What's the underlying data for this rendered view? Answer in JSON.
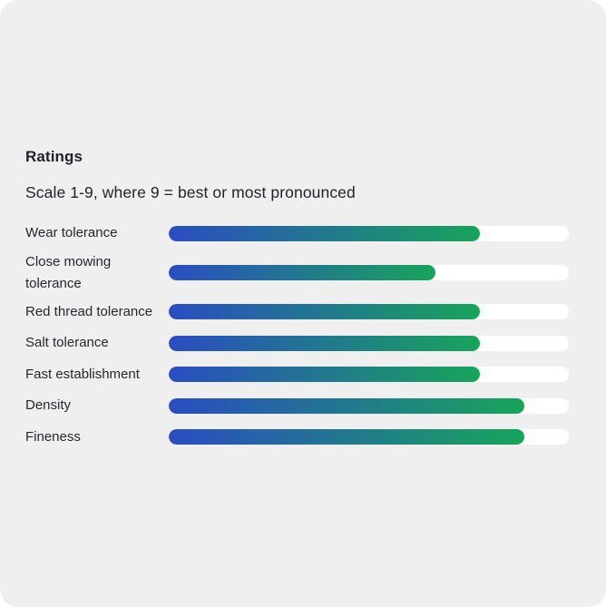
{
  "page": {
    "background": "#ffffff",
    "card_background": "#efefef",
    "text_color": "#1e222a"
  },
  "header": {
    "title": "Ratings",
    "subtitle": "Scale 1-9, where 9 = best or most pronounced"
  },
  "chart_data": {
    "type": "bar",
    "orientation": "horizontal",
    "title": "Ratings",
    "subtitle": "Scale 1-9, where 9 = best or most pronounced",
    "scale_min": 1,
    "scale_max": 9,
    "categories": [
      "Wear tolerance",
      "Close mowing tolerance",
      "Red thread tolerance",
      "Salt tolerance",
      "Fast establishment",
      "Density",
      "Fineness"
    ],
    "values": [
      7,
      6,
      7,
      7,
      7,
      8,
      8
    ],
    "legend": [],
    "grid": false,
    "bar_gradient_start": "#2a4dc2",
    "bar_gradient_end": "#18a45a",
    "track_color": "#ffffff"
  }
}
